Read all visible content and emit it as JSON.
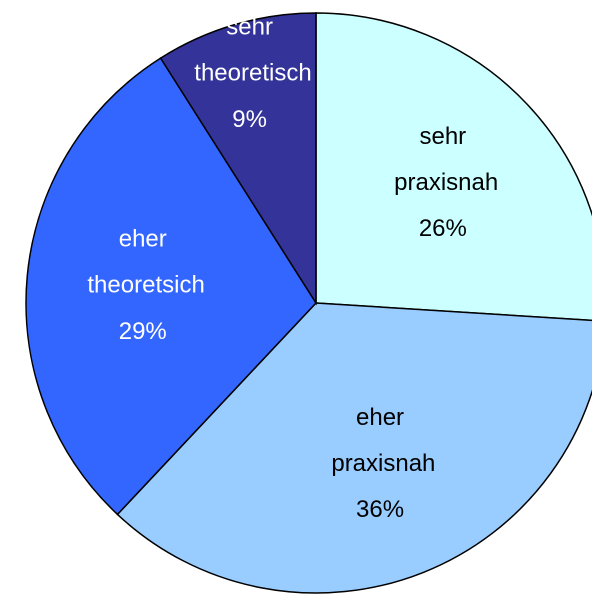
{
  "chart_data": {
    "type": "pie",
    "categories": [
      "sehr praxisnah",
      "eher praxisnah",
      "eher theoretsich",
      "sehr theoretisch"
    ],
    "values": [
      26,
      36,
      29,
      9
    ],
    "value_labels": [
      "26%",
      "36%",
      "29%",
      "9%"
    ],
    "colors": [
      "#ccffff",
      "#99ccff",
      "#3366ff",
      "#333399"
    ],
    "label_colors": [
      "#000000",
      "#000000",
      "#ffffff",
      "#ffffff"
    ]
  }
}
